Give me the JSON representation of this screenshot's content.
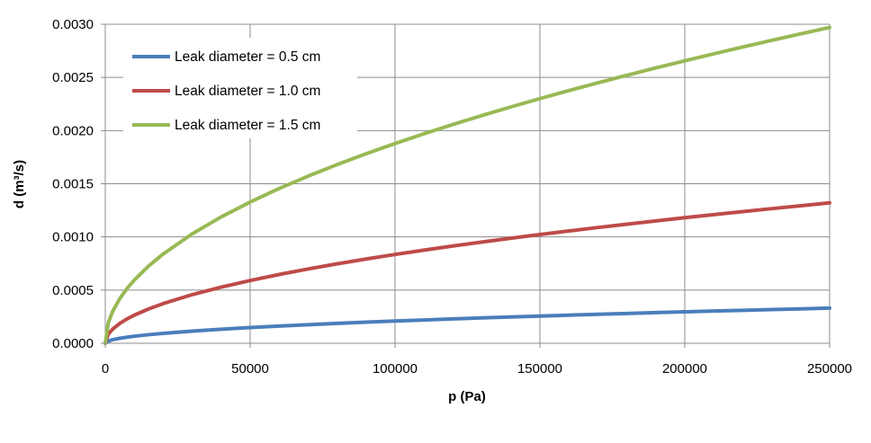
{
  "chart_data": {
    "type": "line",
    "title": "",
    "xlabel": "p (Pa)",
    "ylabel": "d (m³/s)",
    "xlim": [
      0,
      250000
    ],
    "ylim": [
      0,
      0.003
    ],
    "x_ticks": [
      0,
      50000,
      100000,
      150000,
      200000,
      250000
    ],
    "x_tick_labels": [
      "0",
      "50000",
      "100000",
      "150000",
      "200000",
      "250000"
    ],
    "y_ticks": [
      0,
      0.0005,
      0.001,
      0.0015,
      0.002,
      0.0025,
      0.003
    ],
    "y_tick_labels": [
      "0.0000",
      "0.0005",
      "0.0010",
      "0.0015",
      "0.0020",
      "0.0025",
      "0.0030"
    ],
    "grid": true,
    "legend_position": "top-left",
    "x": [
      0,
      1000,
      2500,
      5000,
      7500,
      10000,
      15000,
      20000,
      30000,
      40000,
      50000,
      60000,
      70000,
      80000,
      90000,
      100000,
      110000,
      120000,
      130000,
      140000,
      150000,
      160000,
      170000,
      180000,
      190000,
      200000,
      210000,
      220000,
      230000,
      240000,
      250000
    ],
    "series": [
      {
        "name": "Leak diameter = 0.5 cm",
        "color": "#4a7ebb",
        "values": [
          0,
          2.09e-05,
          3.3e-05,
          4.67e-05,
          5.72e-05,
          6.6e-05,
          8.09e-05,
          9.34e-05,
          0.0001144,
          0.0001321,
          0.0001477,
          0.0001618,
          0.0001748,
          0.0001868,
          0.0001982,
          0.0002089,
          0.0002191,
          0.0002288,
          0.0002382,
          0.0002472,
          0.0002558,
          0.0002642,
          0.0002724,
          0.0002803,
          0.0002879,
          0.0002954,
          0.0003027,
          0.0003098,
          0.0003168,
          0.0003236,
          0.0003303
        ]
      },
      {
        "name": "Leak diameter = 1.0 cm",
        "color": "#be4b48",
        "values": [
          0,
          8.35e-05,
          0.000132,
          0.0001867,
          0.0002286,
          0.000264,
          0.0003233,
          0.0003733,
          0.0004572,
          0.000528,
          0.0005903,
          0.0006466,
          0.0006985,
          0.0007467,
          0.000792,
          0.0008349,
          0.0008756,
          0.0009145,
          0.0009519,
          0.0009878,
          0.0010225,
          0.001056,
          0.0010885,
          0.00112,
          0.0011507,
          0.0011807,
          0.0012098,
          0.0012383,
          0.0012661,
          0.0012933,
          0.00132
        ]
      },
      {
        "name": "Leak diameter = 1.5 cm",
        "color": "#98b954",
        "values": [
          0,
          0.000188,
          0.000297,
          0.00042,
          0.0005144,
          0.000594,
          0.0007275,
          0.00084,
          0.0010288,
          0.001188,
          0.0013282,
          0.001455,
          0.0015716,
          0.00168,
          0.001782,
          0.0018784,
          0.0019701,
          0.0020577,
          0.0021417,
          0.0022226,
          0.0023006,
          0.002376,
          0.0024491,
          0.0025201,
          0.0025891,
          0.0026564,
          0.002722,
          0.002786,
          0.0028486,
          0.0029099,
          0.0029698
        ]
      }
    ]
  }
}
